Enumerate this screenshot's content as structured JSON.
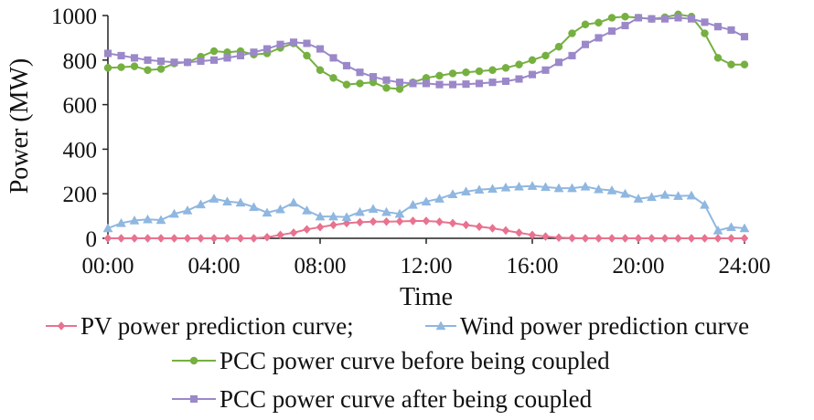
{
  "chart_data": {
    "type": "line",
    "title": "",
    "xlabel": "Time",
    "ylabel": "Power (MW)",
    "xlim": [
      0,
      24
    ],
    "ylim": [
      0,
      1000
    ],
    "x_ticks": [
      0,
      4,
      8,
      12,
      16,
      20,
      24
    ],
    "x_tick_labels": [
      "00:00",
      "04:00",
      "08:00",
      "12:00",
      "16:00",
      "20:00",
      "24:00"
    ],
    "y_ticks": [
      0,
      200,
      400,
      600,
      800,
      1000
    ],
    "y_tick_labels": [
      "0",
      "200",
      "400",
      "600",
      "800",
      "1000"
    ],
    "x": [
      0,
      0.5,
      1,
      1.5,
      2,
      2.5,
      3,
      3.5,
      4,
      4.5,
      5,
      5.5,
      6,
      6.5,
      7,
      7.5,
      8,
      8.5,
      9,
      9.5,
      10,
      10.5,
      11,
      11.5,
      12,
      12.5,
      13,
      13.5,
      14,
      14.5,
      15,
      15.5,
      16,
      16.5,
      17,
      17.5,
      18,
      18.5,
      19,
      19.5,
      20,
      20.5,
      21,
      21.5,
      22,
      22.5,
      23,
      23.5,
      24
    ],
    "grid": false,
    "legend_position": "bottom",
    "series": [
      {
        "name": "PV power prediction curve;",
        "color": "#e8728f",
        "marker": "diamond",
        "values": [
          0,
          0,
          0,
          0,
          0,
          0,
          0,
          0,
          0,
          0,
          0,
          0,
          5,
          15,
          25,
          40,
          50,
          60,
          68,
          72,
          75,
          75,
          76,
          78,
          78,
          74,
          68,
          60,
          52,
          45,
          35,
          25,
          15,
          8,
          3,
          1,
          0,
          0,
          0,
          0,
          0,
          0,
          0,
          0,
          0,
          0,
          0,
          0,
          0
        ]
      },
      {
        "name": "Wind power prediction curve",
        "color": "#8fb7e0",
        "marker": "triangle",
        "values": [
          45,
          68,
          80,
          85,
          82,
          110,
          125,
          152,
          178,
          165,
          160,
          140,
          115,
          130,
          160,
          125,
          98,
          98,
          95,
          118,
          132,
          118,
          110,
          150,
          165,
          178,
          198,
          210,
          218,
          222,
          228,
          232,
          235,
          230,
          225,
          225,
          232,
          220,
          215,
          200,
          178,
          185,
          195,
          190,
          192,
          150,
          35,
          50,
          45
        ]
      },
      {
        "name": "PCC power curve before being coupled",
        "color": "#76b041",
        "marker": "circle",
        "values": [
          765,
          768,
          772,
          755,
          760,
          785,
          790,
          815,
          840,
          835,
          840,
          825,
          830,
          855,
          875,
          820,
          755,
          720,
          690,
          695,
          700,
          675,
          670,
          700,
          720,
          730,
          740,
          745,
          750,
          755,
          765,
          780,
          800,
          820,
          860,
          920,
          960,
          968,
          990,
          995,
          990,
          985,
          992,
          1005,
          995,
          920,
          810,
          780,
          780
        ]
      },
      {
        "name": "PCC power curve after being coupled",
        "color": "#9b88c9",
        "marker": "square",
        "values": [
          830,
          820,
          810,
          800,
          795,
          790,
          790,
          795,
          800,
          810,
          820,
          835,
          850,
          870,
          880,
          875,
          850,
          810,
          775,
          745,
          725,
          710,
          700,
          695,
          695,
          690,
          690,
          692,
          695,
          700,
          705,
          715,
          735,
          755,
          790,
          820,
          870,
          900,
          930,
          955,
          990,
          985,
          985,
          990,
          985,
          970,
          950,
          935,
          905
        ]
      }
    ]
  }
}
